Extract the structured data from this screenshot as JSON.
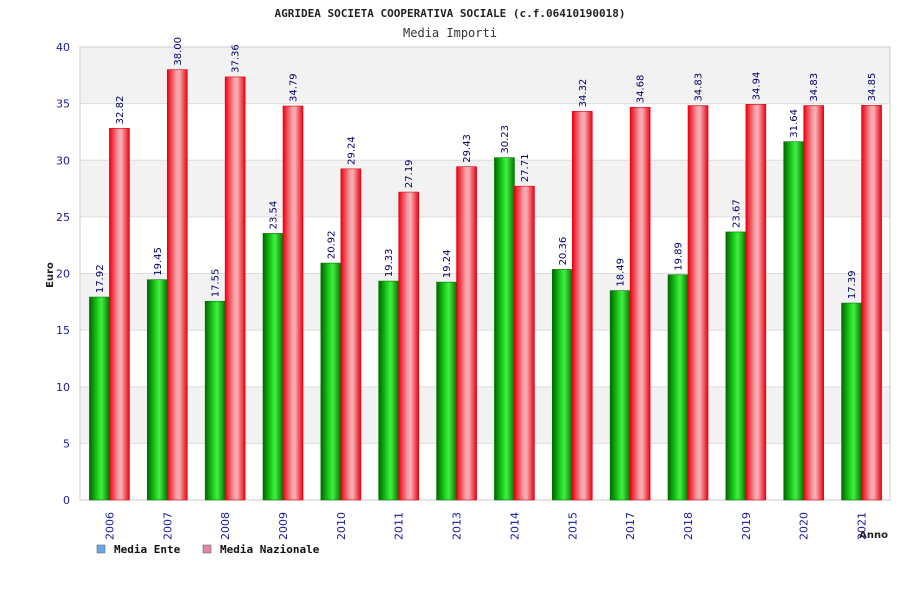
{
  "chart_data": {
    "type": "bar",
    "title": "AGRIDEA SOCIETA COOPERATIVA SOCIALE (c.f.06410190018)",
    "subtitle": "Media Importi",
    "xlabel": "Anno",
    "ylabel": "Euro",
    "ylim": [
      0,
      40
    ],
    "yticks": [
      0,
      5,
      10,
      15,
      20,
      25,
      30,
      35,
      40
    ],
    "grid": true,
    "legend_position": "bottom-left",
    "categories": [
      "2006",
      "2007",
      "2008",
      "2009",
      "2010",
      "2011",
      "2013",
      "2014",
      "2015",
      "2017",
      "2018",
      "2019",
      "2020",
      "2021"
    ],
    "series": [
      {
        "name": "Media Ente",
        "color": "#00bb00",
        "legend_color": "#6aa6e8",
        "values": [
          17.92,
          19.45,
          17.55,
          23.54,
          20.92,
          19.33,
          19.24,
          30.23,
          20.36,
          18.49,
          19.89,
          23.67,
          31.64,
          17.39
        ],
        "labels": [
          "17.92",
          "19.45",
          "17.55",
          "23.54",
          "20.92",
          "19.33",
          "19.24",
          "30.23",
          "20.36",
          "18.49",
          "19.89",
          "23.67",
          "31.64",
          "17.39"
        ]
      },
      {
        "name": "Media Nazionale",
        "color": "#ee1122",
        "legend_color": "#dd88aa",
        "values": [
          32.82,
          38.0,
          37.36,
          34.79,
          29.24,
          27.19,
          29.43,
          27.71,
          34.32,
          34.68,
          34.83,
          34.94,
          34.83,
          34.85
        ],
        "labels": [
          "32.82",
          "38.00",
          "37.36",
          "34.79",
          "29.24",
          "27.19",
          "29.43",
          "27.71",
          "34.32",
          "34.68",
          "34.83",
          "34.94",
          "34.83",
          "34.85"
        ]
      }
    ]
  }
}
